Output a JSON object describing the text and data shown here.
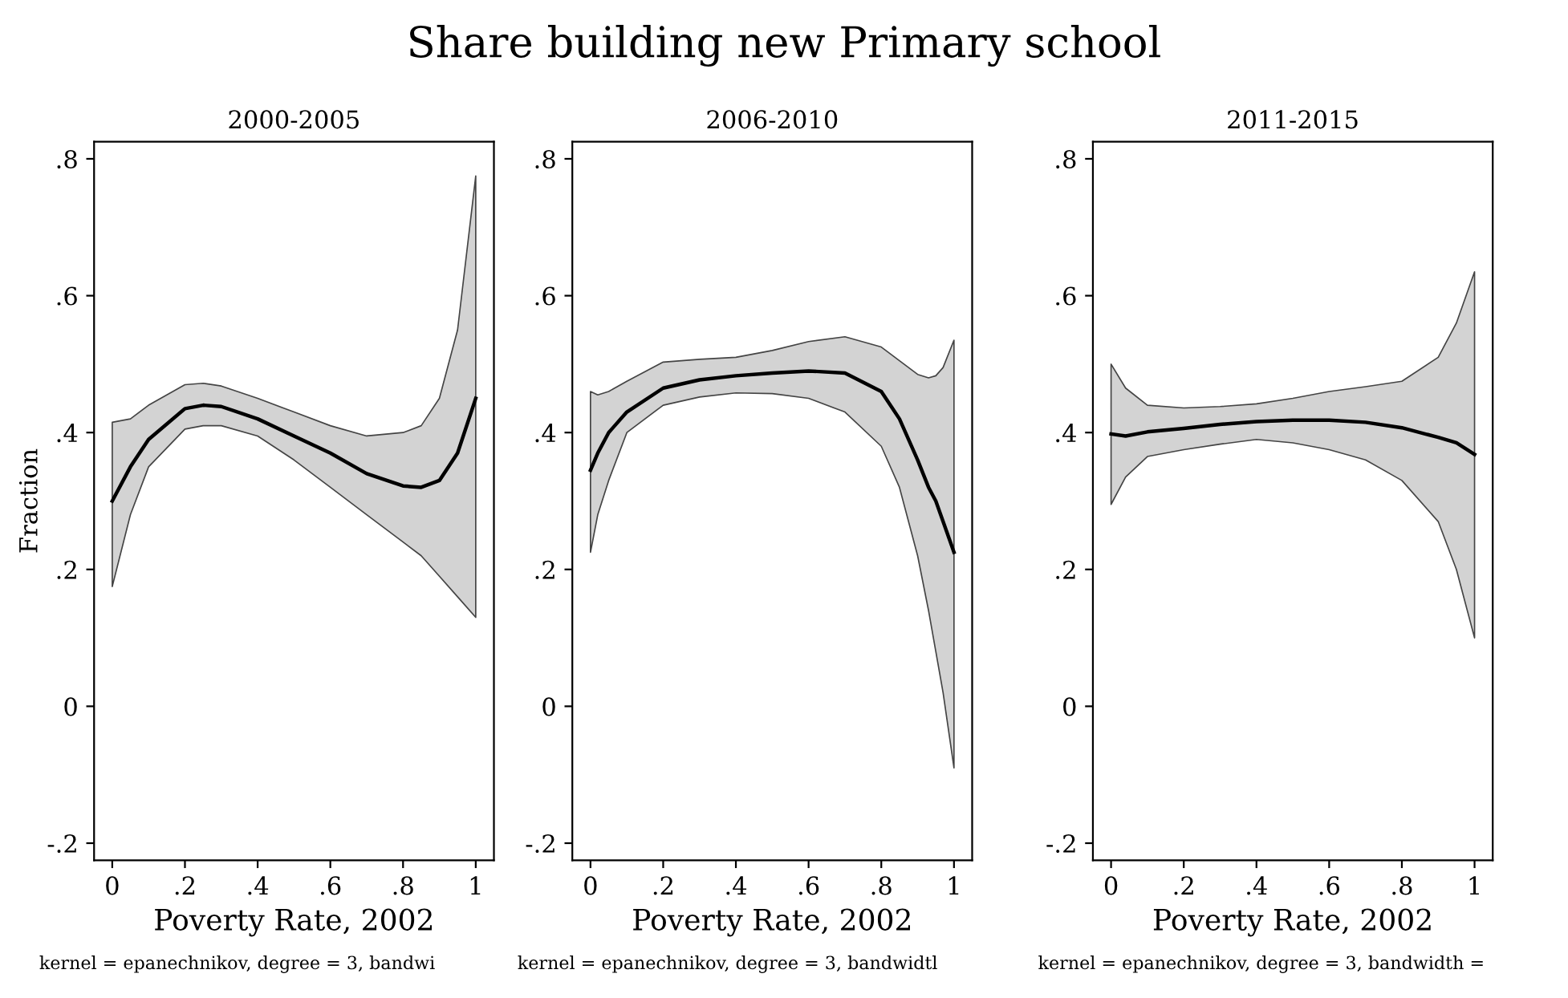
{
  "chart_data": [
    {
      "type": "line",
      "title": "2000-2005",
      "xlabel": "Poverty Rate, 2002",
      "ylabel": "Fraction",
      "annotations": [
        "Share building new Primary school",
        "kernel = epanechnikov, degree = 3, bandwi"
      ],
      "x": [
        0,
        0.05,
        0.1,
        0.2,
        0.25,
        0.3,
        0.4,
        0.5,
        0.6,
        0.7,
        0.8,
        0.85,
        0.9,
        0.95,
        1
      ],
      "series": [
        {
          "color": "#000000",
          "values": [
            0.3,
            0.35,
            0.39,
            0.435,
            0.44,
            0.438,
            0.42,
            0.395,
            0.37,
            0.34,
            0.322,
            0.32,
            0.33,
            0.37,
            0.45
          ],
          "upper": [
            0.415,
            0.42,
            0.44,
            0.47,
            0.472,
            0.468,
            0.45,
            0.43,
            0.41,
            0.395,
            0.4,
            0.41,
            0.45,
            0.55,
            0.775
          ],
          "lower": [
            0.175,
            0.28,
            0.35,
            0.405,
            0.41,
            0.41,
            0.395,
            0.36,
            0.32,
            0.28,
            0.24,
            0.22,
            0.19,
            0.16,
            0.13
          ]
        }
      ],
      "xlim": [
        -0.05,
        1.05
      ],
      "ylim": [
        -0.225,
        0.825
      ],
      "xticks": [
        0,
        {
          "value": 0.2,
          "label": ".2"
        },
        {
          "value": 0.4,
          "label": ".4"
        },
        {
          "value": 0.6,
          "label": ".6"
        },
        {
          "value": 0.8,
          "label": ".8"
        },
        1
      ],
      "yticks": [
        {
          "value": -0.2,
          "label": "-.2"
        },
        0,
        {
          "value": 0.2,
          "label": ".2"
        },
        {
          "value": 0.4,
          "label": ".4"
        },
        {
          "value": 0.6,
          "label": ".6"
        },
        {
          "value": 0.8,
          "label": ".8"
        }
      ],
      "grid": false,
      "legend": false
    },
    {
      "type": "line",
      "title": "2006-2010",
      "xlabel": "Poverty Rate, 2002",
      "annotations": [
        "kernel = epanechnikov, degree = 3, bandwidtl"
      ],
      "x": [
        0,
        0.02,
        0.05,
        0.1,
        0.2,
        0.3,
        0.4,
        0.5,
        0.6,
        0.7,
        0.8,
        0.85,
        0.9,
        0.93,
        0.95,
        0.97,
        1
      ],
      "series": [
        {
          "color": "#000000",
          "values": [
            0.345,
            0.37,
            0.4,
            0.43,
            0.465,
            0.477,
            0.483,
            0.487,
            0.49,
            0.487,
            0.46,
            0.42,
            0.36,
            0.32,
            0.3,
            0.27,
            0.225
          ],
          "upper": [
            0.46,
            0.455,
            0.46,
            0.475,
            0.503,
            0.507,
            0.51,
            0.52,
            0.533,
            0.54,
            0.525,
            0.505,
            0.485,
            0.48,
            0.483,
            0.495,
            0.535
          ],
          "lower": [
            0.225,
            0.28,
            0.33,
            0.4,
            0.44,
            0.452,
            0.458,
            0.457,
            0.45,
            0.43,
            0.38,
            0.32,
            0.22,
            0.14,
            0.08,
            0.02,
            -0.09
          ]
        }
      ],
      "xlim": [
        -0.05,
        1.05
      ],
      "ylim": [
        -0.225,
        0.825
      ],
      "xticks": [
        0,
        {
          "value": 0.2,
          "label": ".2"
        },
        {
          "value": 0.4,
          "label": ".4"
        },
        {
          "value": 0.6,
          "label": ".6"
        },
        {
          "value": 0.8,
          "label": ".8"
        },
        1
      ],
      "yticks": [
        {
          "value": -0.2,
          "label": "-.2"
        },
        0,
        {
          "value": 0.2,
          "label": ".2"
        },
        {
          "value": 0.4,
          "label": ".4"
        },
        {
          "value": 0.6,
          "label": ".6"
        },
        {
          "value": 0.8,
          "label": ".8"
        }
      ],
      "grid": false,
      "legend": false
    },
    {
      "type": "line",
      "title": "2011-2015",
      "xlabel": "Poverty Rate, 2002",
      "annotations": [
        "kernel = epanechnikov, degree = 3, bandwidth ="
      ],
      "x": [
        0,
        0.04,
        0.1,
        0.2,
        0.3,
        0.4,
        0.5,
        0.6,
        0.7,
        0.8,
        0.9,
        0.95,
        1
      ],
      "series": [
        {
          "color": "#000000",
          "values": [
            0.398,
            0.395,
            0.401,
            0.406,
            0.412,
            0.416,
            0.418,
            0.418,
            0.415,
            0.407,
            0.393,
            0.385,
            0.368
          ],
          "upper": [
            0.5,
            0.465,
            0.44,
            0.436,
            0.438,
            0.442,
            0.45,
            0.46,
            0.467,
            0.475,
            0.51,
            0.56,
            0.635
          ],
          "lower": [
            0.295,
            0.335,
            0.365,
            0.375,
            0.383,
            0.39,
            0.385,
            0.375,
            0.36,
            0.33,
            0.27,
            0.2,
            0.1
          ]
        }
      ],
      "xlim": [
        -0.05,
        1.05
      ],
      "ylim": [
        -0.225,
        0.825
      ],
      "xticks": [
        0,
        {
          "value": 0.2,
          "label": ".2"
        },
        {
          "value": 0.4,
          "label": ".4"
        },
        {
          "value": 0.6,
          "label": ".6"
        },
        {
          "value": 0.8,
          "label": ".8"
        },
        1
      ],
      "yticks": [
        {
          "value": -0.2,
          "label": "-.2"
        },
        0,
        {
          "value": 0.2,
          "label": ".2"
        },
        {
          "value": 0.4,
          "label": ".4"
        },
        {
          "value": 0.6,
          "label": ".6"
        },
        {
          "value": 0.8,
          "label": ".8"
        }
      ],
      "grid": false,
      "legend": false
    }
  ]
}
